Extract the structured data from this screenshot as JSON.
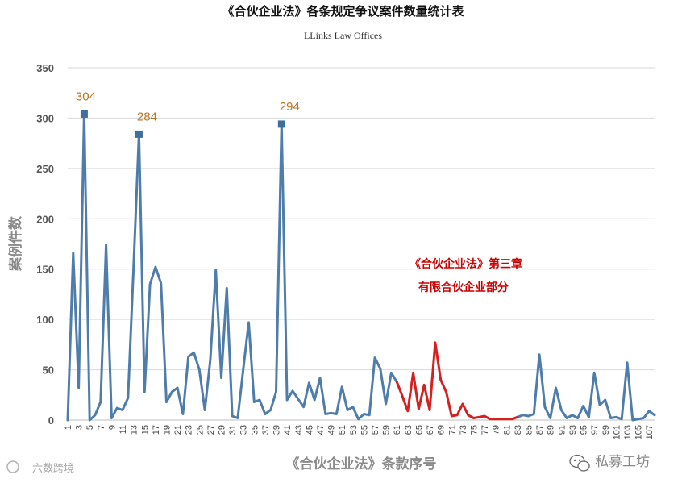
{
  "header": {
    "title": "《合伙企业法》各条规定争议案件数量统计表",
    "subtitle": "LLinks Law Offices"
  },
  "watermarks": {
    "left": "六数跨境",
    "right": "私募工坊"
  },
  "chart_data": {
    "type": "line",
    "xlabel": "《合伙企业法》条款序号",
    "ylabel": "案例件数",
    "ylim": [
      0,
      350
    ],
    "yticks": [
      0,
      50,
      100,
      150,
      200,
      250,
      300,
      350
    ],
    "grid": true,
    "x": [
      1,
      2,
      3,
      4,
      5,
      6,
      7,
      8,
      9,
      10,
      11,
      12,
      13,
      14,
      15,
      16,
      17,
      18,
      19,
      20,
      21,
      22,
      23,
      24,
      25,
      26,
      27,
      28,
      29,
      30,
      31,
      32,
      33,
      34,
      35,
      36,
      37,
      38,
      39,
      40,
      41,
      42,
      43,
      44,
      45,
      46,
      47,
      48,
      49,
      50,
      51,
      52,
      53,
      54,
      55,
      56,
      57,
      58,
      59,
      60,
      61,
      62,
      63,
      64,
      65,
      66,
      67,
      68,
      69,
      70,
      71,
      72,
      73,
      74,
      75,
      76,
      77,
      78,
      79,
      80,
      81,
      82,
      83,
      84,
      85,
      86,
      87,
      88,
      89,
      90,
      91,
      92,
      93,
      94,
      95,
      96,
      97,
      98,
      99,
      100,
      101,
      102,
      103,
      104,
      105,
      106,
      107,
      108
    ],
    "xtick_labels": [
      "1",
      "3",
      "5",
      "7",
      "9",
      "11",
      "13",
      "15",
      "17",
      "19",
      "21",
      "23",
      "25",
      "27",
      "29",
      "31",
      "33",
      "35",
      "37",
      "39",
      "41",
      "43",
      "45",
      "47",
      "49",
      "51",
      "53",
      "55",
      "57",
      "59",
      "61",
      "63",
      "65",
      "67",
      "69",
      "71",
      "73",
      "75",
      "77",
      "79",
      "81",
      "83",
      "85",
      "87",
      "89",
      "91",
      "93",
      "95",
      "97",
      "99",
      "101",
      "103",
      "105",
      "107"
    ],
    "series": [
      {
        "color": "#4f7dab",
        "points": [
          [
            1,
            0
          ],
          [
            2,
            166
          ],
          [
            3,
            32
          ],
          [
            4,
            304
          ],
          [
            5,
            0
          ],
          [
            6,
            5
          ],
          [
            7,
            18
          ],
          [
            8,
            174
          ],
          [
            9,
            2
          ],
          [
            10,
            12
          ],
          [
            11,
            10
          ],
          [
            12,
            22
          ],
          [
            13,
            150
          ],
          [
            14,
            284
          ],
          [
            15,
            28
          ],
          [
            16,
            135
          ],
          [
            17,
            152
          ],
          [
            18,
            136
          ],
          [
            19,
            18
          ],
          [
            20,
            28
          ],
          [
            21,
            32
          ],
          [
            22,
            6
          ],
          [
            23,
            63
          ],
          [
            24,
            67
          ],
          [
            25,
            50
          ],
          [
            26,
            10
          ],
          [
            27,
            60
          ],
          [
            28,
            149
          ],
          [
            29,
            42
          ],
          [
            30,
            131
          ],
          [
            31,
            4
          ],
          [
            32,
            2
          ],
          [
            33,
            50
          ],
          [
            34,
            97
          ],
          [
            35,
            18
          ],
          [
            36,
            20
          ],
          [
            37,
            6
          ],
          [
            38,
            10
          ],
          [
            39,
            28
          ],
          [
            40,
            294
          ],
          [
            41,
            20
          ],
          [
            42,
            29
          ],
          [
            43,
            21
          ],
          [
            44,
            13
          ],
          [
            45,
            37
          ],
          [
            46,
            20
          ],
          [
            47,
            42
          ],
          [
            48,
            6
          ],
          [
            49,
            7
          ],
          [
            50,
            6
          ],
          [
            51,
            33
          ],
          [
            52,
            10
          ],
          [
            53,
            13
          ],
          [
            54,
            1
          ],
          [
            55,
            6
          ],
          [
            56,
            5
          ],
          [
            57,
            62
          ],
          [
            58,
            51
          ],
          [
            59,
            16
          ],
          [
            60,
            47
          ],
          [
            61,
            38
          ]
        ]
      },
      {
        "color": "#4f7dab",
        "points": [
          [
            83,
            3
          ],
          [
            84,
            5
          ],
          [
            85,
            4
          ],
          [
            86,
            6
          ],
          [
            87,
            65
          ],
          [
            88,
            13
          ],
          [
            89,
            2
          ],
          [
            90,
            32
          ],
          [
            91,
            10
          ],
          [
            92,
            2
          ],
          [
            93,
            5
          ],
          [
            94,
            2
          ],
          [
            95,
            14
          ],
          [
            96,
            3
          ],
          [
            97,
            47
          ],
          [
            98,
            15
          ],
          [
            99,
            20
          ],
          [
            100,
            2
          ],
          [
            101,
            3
          ],
          [
            102,
            1
          ],
          [
            103,
            57
          ],
          [
            104,
            0
          ],
          [
            105,
            1
          ],
          [
            106,
            2
          ],
          [
            107,
            9
          ],
          [
            108,
            5
          ]
        ]
      },
      {
        "color": "#d42020",
        "points": [
          [
            61,
            38
          ],
          [
            62,
            24
          ],
          [
            63,
            9
          ],
          [
            64,
            47
          ],
          [
            65,
            11
          ],
          [
            66,
            35
          ],
          [
            67,
            10
          ],
          [
            68,
            77
          ],
          [
            69,
            40
          ],
          [
            70,
            28
          ],
          [
            71,
            4
          ],
          [
            72,
            5
          ],
          [
            73,
            16
          ],
          [
            74,
            5
          ],
          [
            75,
            2
          ],
          [
            76,
            3
          ],
          [
            77,
            4
          ],
          [
            78,
            1
          ],
          [
            79,
            1
          ],
          [
            80,
            1
          ],
          [
            81,
            1
          ],
          [
            82,
            1
          ],
          [
            83,
            3
          ]
        ]
      }
    ],
    "markers": [
      {
        "x": 4,
        "y": 304,
        "label": "304"
      },
      {
        "x": 14,
        "y": 284,
        "label": "284"
      },
      {
        "x": 40,
        "y": 294,
        "label": "294"
      }
    ],
    "annotation": {
      "lines": [
        "《合伙企业法》第三章",
        "有限合伙企业部分"
      ],
      "color": "#cc0000"
    }
  }
}
